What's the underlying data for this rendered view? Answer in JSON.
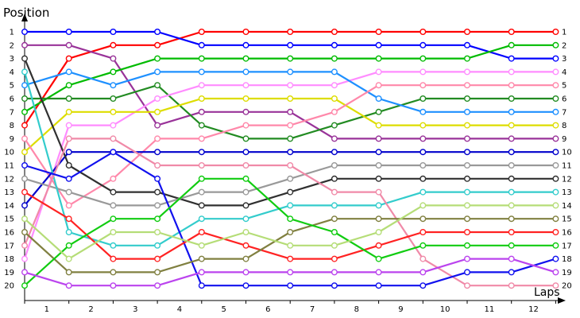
{
  "chart_data": {
    "type": "line",
    "ylabel": "Position",
    "xlabel": "Laps",
    "x_ticks": [
      "1",
      "2",
      "3",
      "4",
      "5",
      "6",
      "7",
      "8",
      "9",
      "10",
      "11",
      "12"
    ],
    "y_ticks": [
      "1",
      "2",
      "3",
      "4",
      "5",
      "6",
      "7",
      "8",
      "9",
      "10",
      "11",
      "12",
      "13",
      "14",
      "15",
      "16",
      "17",
      "18",
      "19",
      "20"
    ],
    "right_ticks": [
      "1",
      "2",
      "3",
      "4",
      "5",
      "6",
      "7",
      "8",
      "9",
      "10",
      "11",
      "12",
      "13",
      "14",
      "15",
      "16",
      "17",
      "18",
      "19",
      "20"
    ],
    "ylim": [
      1,
      20
    ],
    "y_inverted": true,
    "grid": false,
    "lap_stages": [
      0,
      1,
      2,
      3,
      4,
      5,
      6,
      7,
      8,
      9,
      10,
      11,
      12
    ],
    "series": [
      {
        "color": "#ff0000",
        "positions": [
          8,
          3,
          2,
          2,
          1,
          1,
          1,
          1,
          1,
          1,
          1,
          1,
          1
        ]
      },
      {
        "color": "#0000ff",
        "positions": [
          1,
          1,
          1,
          1,
          2,
          2,
          2,
          2,
          2,
          2,
          2,
          3,
          3
        ]
      },
      {
        "color": "#993399",
        "positions": [
          2,
          2,
          3,
          8,
          7,
          7,
          7,
          9,
          9,
          9,
          9,
          9,
          9
        ]
      },
      {
        "color": "#00bb00",
        "positions": [
          7,
          5,
          4,
          3,
          3,
          3,
          3,
          3,
          3,
          3,
          3,
          2,
          2
        ]
      },
      {
        "color": "#228b22",
        "positions": [
          6,
          6,
          6,
          5,
          8,
          9,
          9,
          8,
          7,
          6,
          6,
          6,
          6
        ]
      },
      {
        "color": "#ff8cff",
        "positions": [
          18,
          8,
          8,
          6,
          5,
          5,
          5,
          5,
          4,
          4,
          4,
          4,
          4
        ]
      },
      {
        "color": "#1e90ff",
        "positions": [
          5,
          4,
          5,
          4,
          4,
          4,
          4,
          4,
          6,
          7,
          7,
          7,
          7
        ]
      },
      {
        "color": "#dddd00",
        "positions": [
          10,
          7,
          7,
          7,
          6,
          6,
          6,
          6,
          8,
          8,
          8,
          8,
          8
        ]
      },
      {
        "color": "#ff88aa",
        "positions": [
          9,
          14,
          12,
          9,
          9,
          8,
          8,
          7,
          5,
          5,
          5,
          5,
          5
        ]
      },
      {
        "color": "#0000cc",
        "positions": [
          14,
          10,
          10,
          10,
          10,
          10,
          10,
          10,
          10,
          10,
          10,
          10,
          10
        ]
      },
      {
        "color": "#303030",
        "positions": [
          3,
          11,
          13,
          13,
          14,
          14,
          13,
          12,
          12,
          12,
          12,
          12,
          12
        ]
      },
      {
        "color": "#999999",
        "positions": [
          12,
          13,
          14,
          14,
          13,
          13,
          12,
          11,
          11,
          11,
          11,
          11,
          11
        ]
      },
      {
        "color": "#33cccc",
        "positions": [
          4,
          16,
          17,
          17,
          15,
          15,
          14,
          14,
          14,
          13,
          13,
          13,
          13
        ]
      },
      {
        "color": "#f08aa8",
        "positions": [
          17,
          9,
          9,
          11,
          11,
          11,
          11,
          13,
          13,
          18,
          20,
          20,
          20
        ]
      },
      {
        "color": "#1111ee",
        "positions": [
          11,
          12,
          10,
          12,
          20,
          20,
          20,
          20,
          20,
          20,
          19,
          19,
          18
        ]
      },
      {
        "color": "#ff2222",
        "positions": [
          13,
          15,
          18,
          18,
          16,
          17,
          18,
          18,
          17,
          16,
          16,
          16,
          16
        ]
      },
      {
        "color": "#808040",
        "positions": [
          16,
          19,
          19,
          19,
          18,
          18,
          16,
          15,
          15,
          15,
          15,
          15,
          15
        ]
      },
      {
        "color": "#11cc11",
        "positions": [
          20,
          17,
          15,
          15,
          12,
          12,
          15,
          16,
          18,
          17,
          17,
          17,
          17
        ]
      },
      {
        "color": "#b5dd77",
        "positions": [
          15,
          18,
          16,
          16,
          17,
          16,
          17,
          17,
          16,
          14,
          14,
          14,
          14
        ]
      },
      {
        "color": "#bb44ee",
        "positions": [
          19,
          20,
          20,
          20,
          19,
          19,
          19,
          19,
          19,
          19,
          18,
          18,
          19
        ]
      }
    ]
  }
}
